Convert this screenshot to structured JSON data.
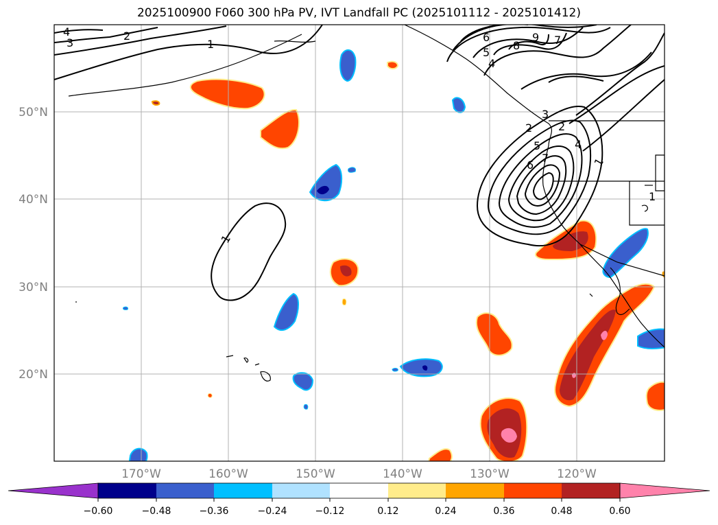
{
  "title": "2025100900 F060 300 hPa PV, IVT Landfall PC (2025101112 - 2025101412)",
  "map": {
    "lat_labels": [
      "50°N",
      "40°N",
      "30°N",
      "20°N"
    ],
    "lon_labels": [
      "170°W",
      "160°W",
      "150°W",
      "140°W",
      "130°W",
      "120°W"
    ],
    "lat_values": [
      50,
      40,
      30,
      20
    ],
    "lon_values": [
      -170,
      -160,
      -150,
      -140,
      -130,
      -120
    ],
    "extent": {
      "lon_min": -180,
      "lon_max": -110,
      "lat_min": 10,
      "lat_max": 60
    },
    "contour_labels": [
      "4",
      "3",
      "2",
      "1",
      "1",
      "1",
      "6",
      "9",
      "8",
      "7",
      "5",
      "4",
      "3",
      "2",
      "5",
      "6",
      "7",
      "4",
      "2",
      "1"
    ]
  },
  "colorbar": {
    "ticks": [
      "−0.60",
      "−0.48",
      "−0.36",
      "−0.24",
      "−0.12",
      "0.12",
      "0.24",
      "0.36",
      "0.48",
      "0.60"
    ],
    "colors": [
      "#9932cc",
      "#00008b",
      "#3a5fcd",
      "#00bfff",
      "#b0e2ff",
      "#ffffff",
      "#ffec8b",
      "#ffa500",
      "#ff4500",
      "#b22222",
      "#ff82ab"
    ]
  }
}
